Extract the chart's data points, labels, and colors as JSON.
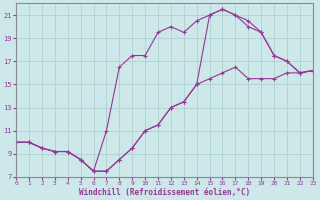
{
  "xlabel": "Windchill (Refroidissement éolien,°C)",
  "xlim": [
    0,
    23
  ],
  "ylim": [
    7,
    22
  ],
  "xticks": [
    0,
    1,
    2,
    3,
    4,
    5,
    6,
    7,
    8,
    9,
    10,
    11,
    12,
    13,
    14,
    15,
    16,
    17,
    18,
    19,
    20,
    21,
    22,
    23
  ],
  "yticks": [
    7,
    9,
    11,
    13,
    15,
    17,
    19,
    21
  ],
  "background_color": "#cce8e8",
  "line_color": "#993399",
  "grid_color": "#aacccc",
  "line1_x": [
    0,
    1,
    2,
    3,
    4,
    5,
    6,
    7,
    8,
    9,
    10,
    11,
    12,
    13,
    14,
    15,
    16,
    17,
    18,
    19,
    20,
    21,
    22,
    23
  ],
  "line1_y": [
    10.0,
    10.0,
    9.5,
    9.2,
    9.2,
    8.5,
    7.5,
    7.5,
    8.5,
    9.5,
    11.0,
    11.5,
    13.0,
    13.5,
    15.0,
    15.5,
    16.0,
    16.5,
    15.5,
    15.5,
    15.5,
    16.0,
    16.0,
    16.2
  ],
  "line2_x": [
    0,
    1,
    2,
    3,
    4,
    5,
    6,
    7,
    8,
    9,
    10,
    11,
    12,
    13,
    14,
    15,
    16,
    17,
    18,
    19,
    20,
    21,
    22,
    23
  ],
  "line2_y": [
    10.0,
    10.0,
    9.5,
    9.2,
    9.2,
    8.5,
    7.5,
    11.0,
    16.5,
    17.5,
    17.5,
    19.5,
    20.0,
    19.5,
    20.5,
    21.0,
    21.5,
    21.0,
    20.5,
    19.5,
    17.5,
    17.0,
    16.0,
    16.2
  ],
  "line3_x": [
    0,
    1,
    2,
    3,
    4,
    5,
    6,
    7,
    8,
    9,
    10,
    11,
    12,
    13,
    14,
    15,
    16,
    17,
    18,
    19,
    20,
    21,
    22,
    23
  ],
  "line3_y": [
    10.0,
    10.0,
    9.5,
    9.2,
    9.2,
    8.5,
    7.5,
    7.5,
    8.5,
    9.5,
    11.0,
    11.5,
    13.0,
    13.5,
    15.0,
    21.0,
    21.5,
    21.0,
    20.0,
    19.5,
    17.5,
    17.0,
    16.0,
    16.2
  ]
}
